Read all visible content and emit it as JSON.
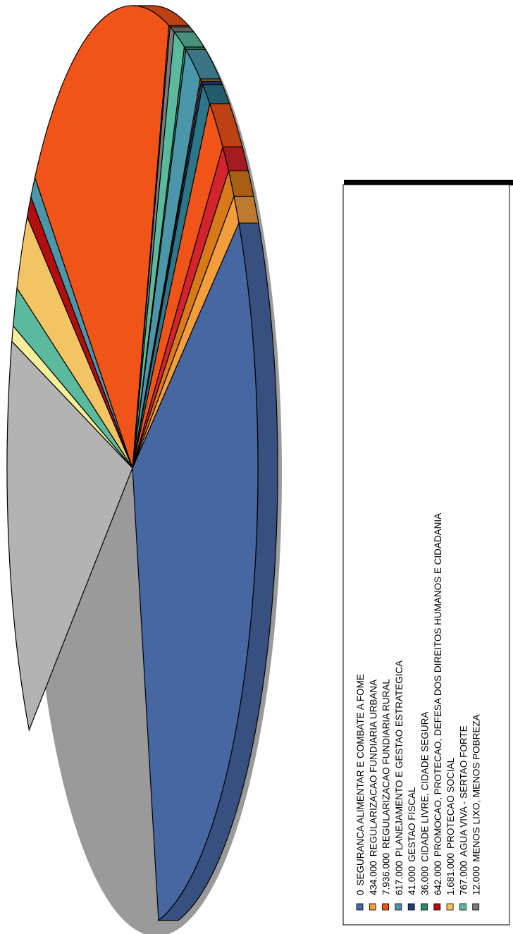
{
  "chart_data": {
    "type": "pie",
    "style": "3d-exploded-rotated",
    "legend_position": "right",
    "slices": [
      {
        "amount_label": "0",
        "label": "SEGURANCA ALIMENTAR E COMBATE A FOME",
        "color": "#4767A3",
        "value": 0.22
      },
      {
        "amount_label": "434.000",
        "label": "REGULARIZACAO FUNDIARIA URBANA",
        "color": "#F39E3C",
        "value": 0.02
      },
      {
        "amount_label": "7.936.000",
        "label": "REGULARIZACAO FUNDIARIA RURAL",
        "color": "#F15418",
        "value": 0.16
      },
      {
        "amount_label": "617.000",
        "label": "PLANEJAMENTO E GESTAO ESTRATEGICA",
        "color": "#4C96A9",
        "value": 0.03
      },
      {
        "amount_label": "41.000",
        "label": "GESTAO FISCAL",
        "color": "#213D74",
        "value": 0.004
      },
      {
        "amount_label": "36.000",
        "label": "CIDADE LIVRE, CIDADE SEGURA",
        "color": "#2E8C6B",
        "value": 0.004
      },
      {
        "amount_label": "642.000",
        "label": "PROMOCAO, PROTECAO, DEFESA DOS DIREITOS HUMANOS E CIDADANIA",
        "color": "#B20E10",
        "value": 0.013
      },
      {
        "amount_label": "1.681.000",
        "label": "PROTECAO SOCIAL",
        "color": "#F2C463",
        "value": 0.034
      },
      {
        "amount_label": "767.000",
        "label": "AGUA VIVA - SERTAO FORTE",
        "color": "#5BBA9E",
        "value": 0.03
      },
      {
        "amount_label": "12.000",
        "label": "MENOS LIXO, MENOS POBREZA",
        "color": "#7A7A7A",
        "value": 0.01
      }
    ],
    "unlabeled_slices": [
      {
        "color": "#B3B3B3",
        "value": 0.14
      },
      {
        "color": "#F5EE9A",
        "value": 0.01
      },
      {
        "color": "#D2242A",
        "value": 0.02
      },
      {
        "color": "#D87A18",
        "value": 0.02
      },
      {
        "color": "#2C768A",
        "value": 0.025
      },
      {
        "color": "#F39E3C",
        "value": 0.005
      }
    ]
  }
}
